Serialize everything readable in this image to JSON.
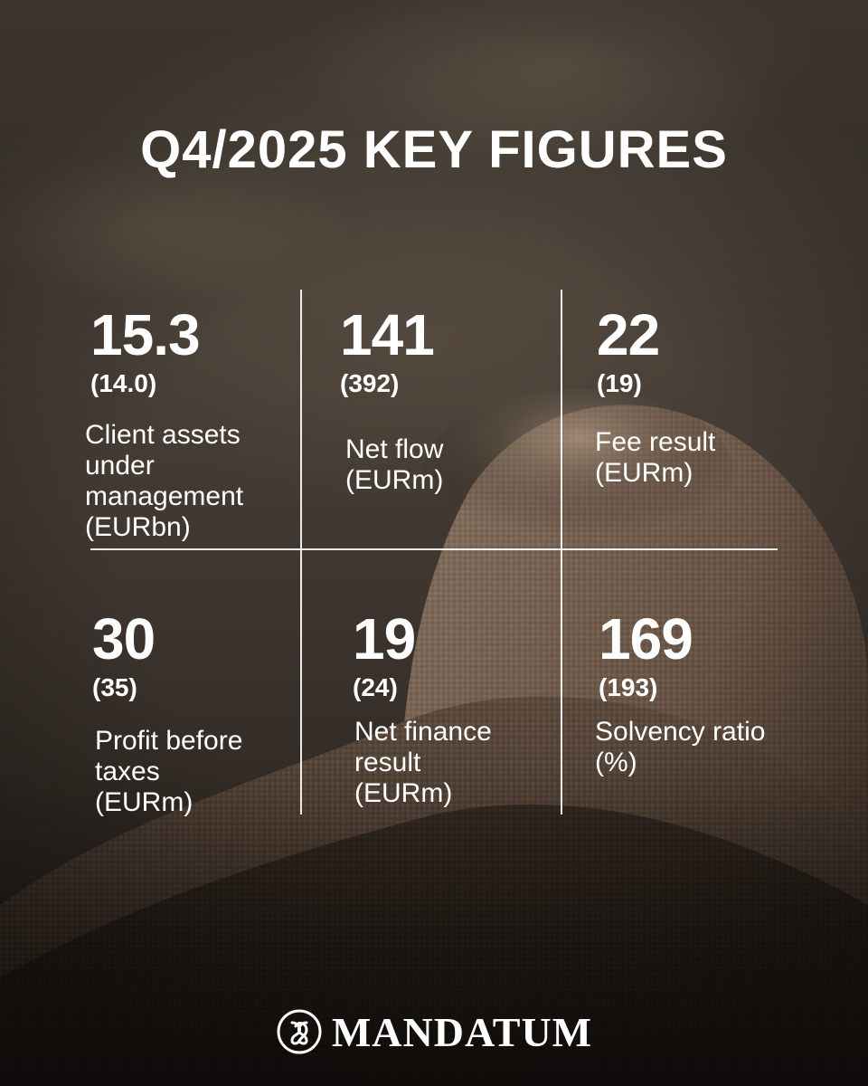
{
  "title": "Q4/2025 KEY FIGURES",
  "figures": [
    {
      "value": "15.3",
      "previous": "(14.0)",
      "label": [
        "Client assets",
        "under",
        "management",
        "(EURbn)"
      ]
    },
    {
      "value": "141",
      "previous": "(392)",
      "label": [
        "Net flow",
        "(EURm)"
      ]
    },
    {
      "value": "22",
      "previous": "(19)",
      "label": [
        "Fee result",
        "(EURm)"
      ]
    },
    {
      "value": "30",
      "previous": "(35)",
      "label": [
        "Profit before",
        "taxes",
        "(EURm)"
      ]
    },
    {
      "value": "19",
      "previous": "(24)",
      "label": [
        "Net finance",
        "result",
        "(EURm)"
      ]
    },
    {
      "value": "169",
      "previous": "(193)",
      "label": [
        "Solvency ratio",
        "(%)"
      ]
    }
  ],
  "brand": {
    "name": "MANDATUM",
    "logo_icon": "mandatum-knot-icon"
  },
  "colors": {
    "text": "#ffffff",
    "background": "#3b332c"
  }
}
